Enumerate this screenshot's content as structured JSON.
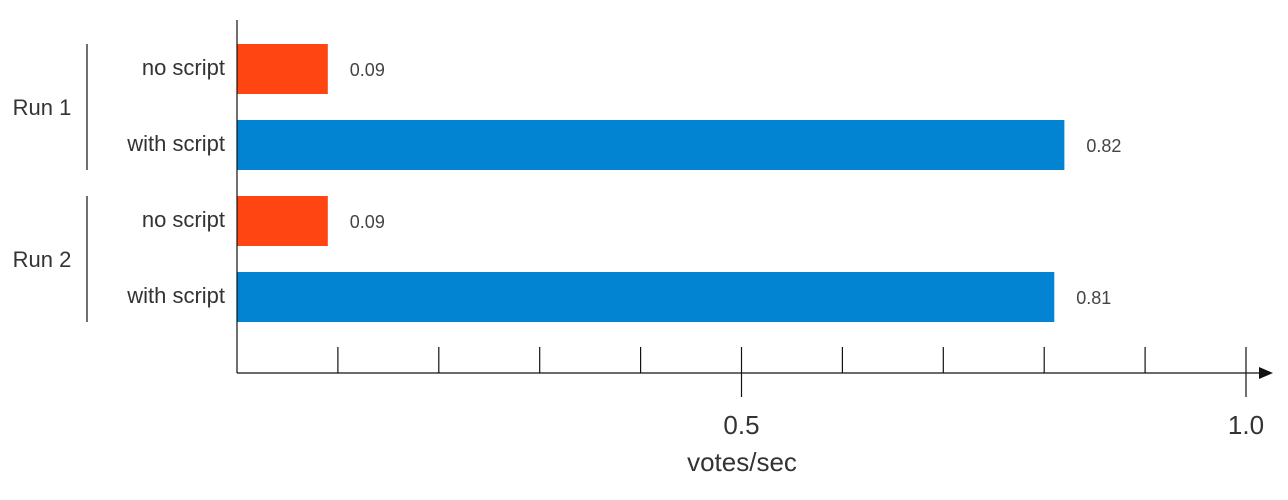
{
  "chart_data": {
    "type": "bar",
    "orientation": "horizontal",
    "title": "",
    "xlabel": "votes/sec",
    "xlim": [
      0,
      1.0
    ],
    "x_ticks": [
      {
        "value": 0.5,
        "label": "0.5"
      },
      {
        "value": 1.0,
        "label": "1.0"
      }
    ],
    "minor_tick_step": 0.1,
    "grid": false,
    "groups": [
      {
        "name": "Run 1",
        "bars": [
          {
            "category": "no script",
            "value": 0.09,
            "label": "0.09",
            "color": "#ff4511"
          },
          {
            "category": "with script",
            "value": 0.82,
            "label": "0.82",
            "color": "#0284d2"
          }
        ]
      },
      {
        "name": "Run 2",
        "bars": [
          {
            "category": "no script",
            "value": 0.09,
            "label": "0.09",
            "color": "#ff4511"
          },
          {
            "category": "with script",
            "value": 0.81,
            "label": "0.81",
            "color": "#0284d2"
          }
        ]
      }
    ]
  }
}
